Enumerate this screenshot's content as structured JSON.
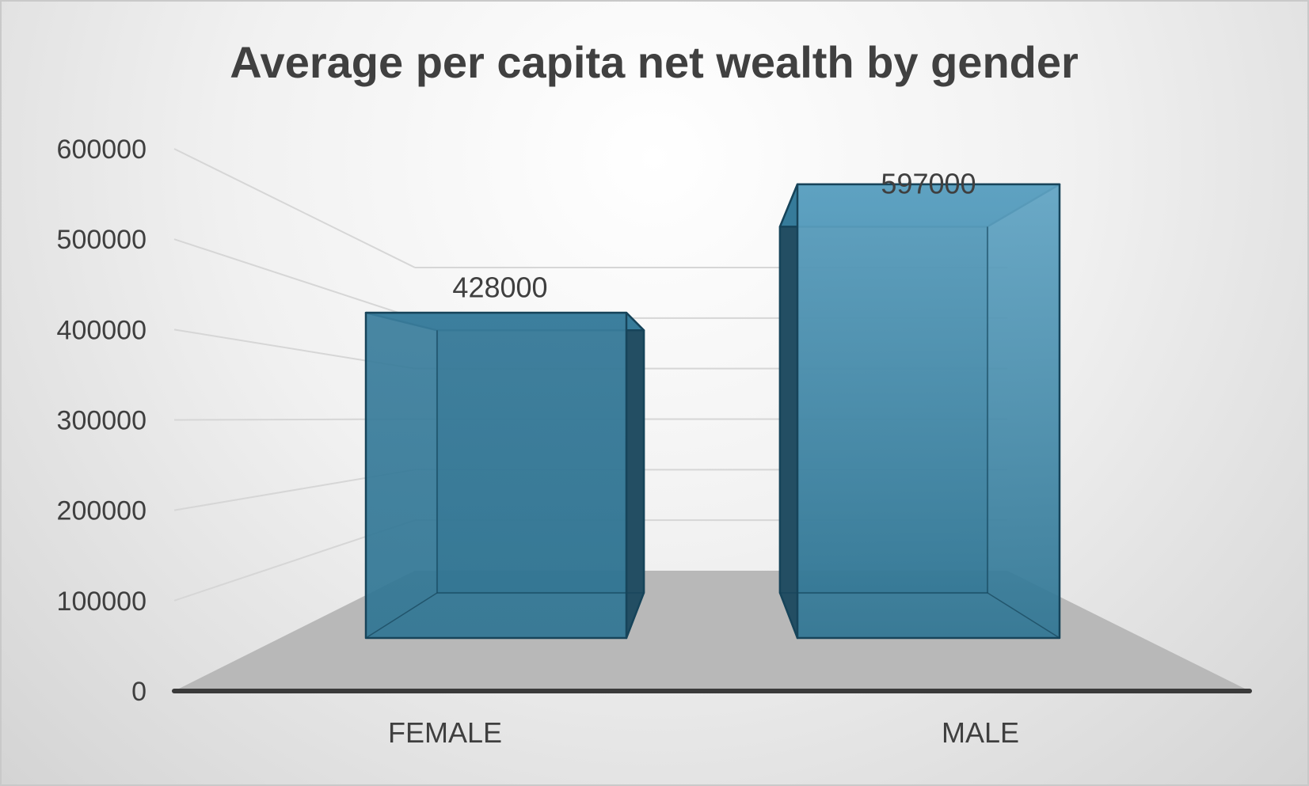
{
  "chart_data": {
    "type": "bar",
    "style": "3d-column",
    "title": "Average per capita net wealth by gender",
    "categories": [
      "FEMALE",
      "MALE"
    ],
    "values": [
      428000,
      597000
    ],
    "data_labels": [
      "428000",
      "597000"
    ],
    "ylim": [
      0,
      600000
    ],
    "yticks": [
      "0",
      "100000",
      "200000",
      "300000",
      "400000",
      "500000",
      "600000"
    ],
    "xlabel": "",
    "ylabel": "",
    "grid": true,
    "legend": "none",
    "colors": {
      "bar_front": "#2f7593",
      "bar_side": "#234e63",
      "bar_top": "#3a84a3",
      "bar_edge": "#17445a",
      "floor": "#b8b8b8",
      "axis": "#3a3a3a",
      "text": "#404040"
    }
  }
}
